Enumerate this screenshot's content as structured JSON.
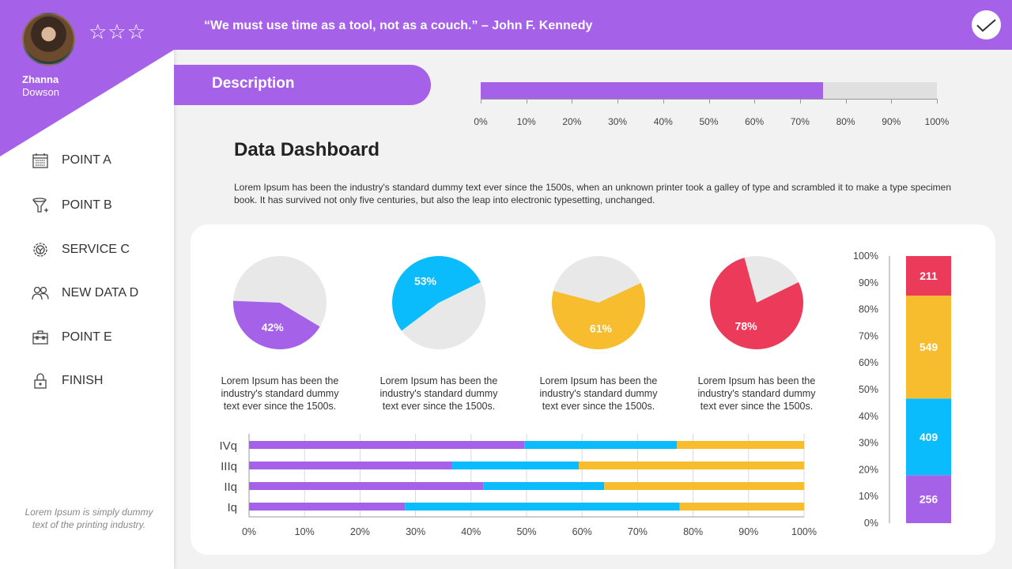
{
  "profile": {
    "first_name": "Zhanna",
    "last_name": "Dowson",
    "stars": "☆☆☆",
    "rating_filled": 0,
    "rating_max": 3
  },
  "header": {
    "quote": "“We must use time as a tool, not as a couch.” – John F. Kennedy",
    "check_icon": "checkmark-icon"
  },
  "sidebar": {
    "items": [
      {
        "label": "POINT A",
        "icon": "calendar-icon"
      },
      {
        "label": "POINT B",
        "icon": "funnel-icon"
      },
      {
        "label": "SERVICE C",
        "icon": "gear-icon"
      },
      {
        "label": "NEW DATA D",
        "icon": "users-icon"
      },
      {
        "label": "POINT E",
        "icon": "toolbox-icon"
      },
      {
        "label": "FINISH",
        "icon": "lock-icon"
      }
    ],
    "footnote": "Lorem Ipsum is simply dummy text of the printing industry."
  },
  "description_tab": "Description",
  "progress": {
    "value_percent": 75,
    "ticks": [
      "0%",
      "10%",
      "20%",
      "30%",
      "40%",
      "50%",
      "60%",
      "70%",
      "80%",
      "90%",
      "100%"
    ]
  },
  "main": {
    "title": "Data Dashboard",
    "body": "Lorem Ipsum has been the industry's standard dummy text ever since the 1500s, when an unknown printer took a galley of type and scrambled it to make a type specimen book. It has survived not only five centuries, but also the leap into electronic typesetting, unchanged."
  },
  "colors": {
    "purple": "#a561e8",
    "blue": "#0abcfc",
    "yellow": "#f8bd2f",
    "red": "#ec3a5a",
    "grey": "#e8e8e8"
  },
  "chart_data": [
    {
      "type": "pie",
      "values": [
        42,
        53,
        61,
        78
      ],
      "labels": [
        "42%",
        "53%",
        "61%",
        "78%"
      ],
      "colors": [
        "#a561e8",
        "#0abcfc",
        "#f8bd2f",
        "#ec3a5a"
      ],
      "captions": [
        "Lorem Ipsum has been the industry's standard dummy text ever since the 1500s.",
        "Lorem Ipsum has been the industry's standard dummy text ever since the 1500s.",
        "Lorem Ipsum has been the industry's standard dummy text ever since the 1500s.",
        "Lorem Ipsum has been the industry's standard dummy text ever since the 1500s."
      ]
    },
    {
      "type": "bar",
      "orientation": "horizontal",
      "stacked": "100%",
      "categories": [
        "Iq",
        "IIq",
        "IIIq",
        "IVq"
      ],
      "series": [
        {
          "values": [
            28.1,
            42.2,
            36.6,
            49.6
          ],
          "color": "#a561e8"
        },
        {
          "values": [
            49.5,
            21.8,
            22.8,
            27.5
          ],
          "color": "#0abcfc"
        },
        {
          "values": [
            22.4,
            36.0,
            40.6,
            22.9
          ],
          "color": "#f8bd2f"
        }
      ],
      "xticks": [
        "0%",
        "10%",
        "20%",
        "30%",
        "40%",
        "50%",
        "60%",
        "70%",
        "80%",
        "90%",
        "100%"
      ],
      "xlim": [
        0,
        100
      ],
      "grid": true
    },
    {
      "type": "bar",
      "stacked": "100%",
      "values": [
        256,
        409,
        549,
        211
      ],
      "labels": [
        "256",
        "409",
        "549",
        "211"
      ],
      "colors": [
        "#a561e8",
        "#0abcfc",
        "#f8bd2f",
        "#ec3a5a"
      ],
      "yticks": [
        "0%",
        "10%",
        "20%",
        "30%",
        "40%",
        "50%",
        "60%",
        "70%",
        "80%",
        "90%",
        "100%"
      ],
      "ylim": [
        0,
        100
      ]
    }
  ]
}
